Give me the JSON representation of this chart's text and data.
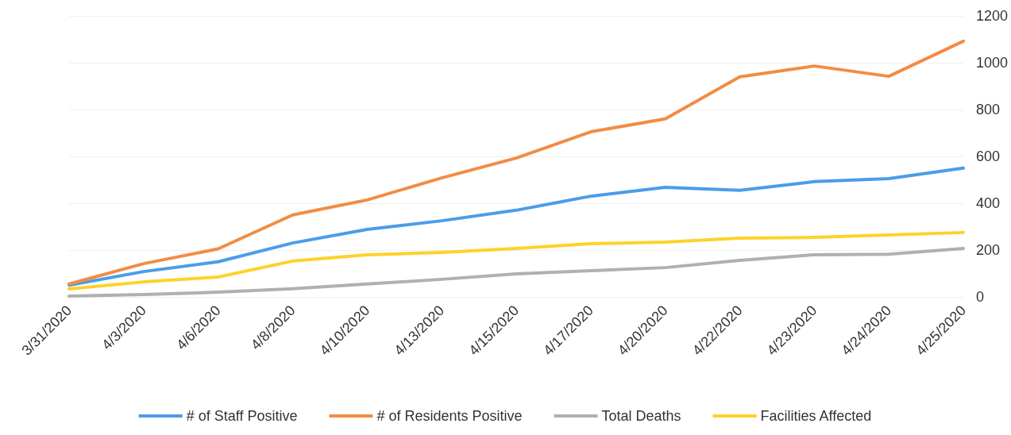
{
  "chart_data": {
    "type": "line",
    "categories": [
      "3/31/2020",
      "4/3/2020",
      "4/6/2020",
      "4/8/2020",
      "4/10/2020",
      "4/13/2020",
      "4/15/2020",
      "4/17/2020",
      "4/20/2020",
      "4/22/2020",
      "4/23/2020",
      "4/24/2020",
      "4/25/2020"
    ],
    "series": [
      {
        "name": "# of Staff Positive",
        "color": "#4a9de8",
        "values": [
          50,
          108,
          150,
          230,
          288,
          325,
          370,
          430,
          468,
          455,
          492,
          505,
          550
        ]
      },
      {
        "name": "# of Residents Positive",
        "color": "#f28c45",
        "values": [
          55,
          142,
          205,
          350,
          414,
          508,
          593,
          705,
          760,
          940,
          986,
          942,
          1092
        ]
      },
      {
        "name": "Total Deaths",
        "color": "#b0b0b0",
        "values": [
          3,
          10,
          20,
          35,
          55,
          75,
          98,
          112,
          125,
          156,
          180,
          182,
          207
        ]
      },
      {
        "name": "Facilities Affected",
        "color": "#fdd22a",
        "values": [
          34,
          64,
          85,
          153,
          180,
          190,
          207,
          227,
          234,
          251,
          254,
          264,
          275
        ]
      }
    ],
    "ylim": [
      0,
      1200
    ],
    "yticks": [
      0,
      200,
      400,
      600,
      800,
      1000,
      1200
    ],
    "grid": "y",
    "legend": "bottom",
    "marker": "none",
    "line_style": "solid"
  }
}
